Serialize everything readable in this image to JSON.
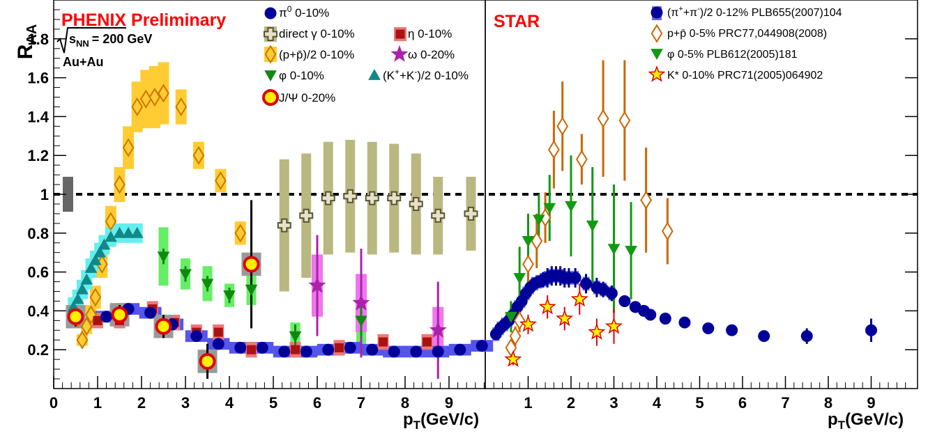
{
  "chart_data": [
    {
      "type": "scatter",
      "panel": "PHENIX",
      "title": "PHENIX Preliminary",
      "info": [
        "= 200 GeV",
        "Au+Au"
      ],
      "ylabel": "R",
      "ylabel_sub": "AA",
      "xlabel": "p",
      "xlabel_sub": "T",
      "xlabel_rest": "(GeV/c)",
      "xlim": [
        0,
        10.0
      ],
      "ylim": [
        0,
        2.0
      ],
      "xticks": [
        "0",
        "1",
        "2",
        "3",
        "4",
        "5",
        "6",
        "7",
        "8",
        "9"
      ],
      "yticks": [
        "0.2",
        "0.4",
        "0.6",
        "0.8",
        "1",
        "1.2",
        "1.4",
        "1.6",
        "1.8"
      ],
      "reference_line": 1,
      "series": [
        {
          "name": "π⁰ 0-10%",
          "marker": "circle",
          "color": "#000099",
          "x": [
            1.2,
            1.7,
            2.2,
            2.7,
            3.25,
            3.75,
            4.25,
            4.75,
            5.25,
            5.75,
            6.25,
            6.75,
            7.25,
            7.75,
            8.25,
            8.75,
            9.25,
            9.75
          ],
          "y": [
            0.37,
            0.41,
            0.39,
            0.33,
            0.27,
            0.23,
            0.21,
            0.21,
            0.19,
            0.19,
            0.2,
            0.21,
            0.2,
            0.19,
            0.19,
            0.19,
            0.2,
            0.22
          ]
        },
        {
          "name": "direct γ 0-10%",
          "marker": "cross",
          "color": "#555533",
          "x": [
            5.25,
            5.75,
            6.25,
            6.75,
            7.25,
            7.75,
            8.25,
            8.75,
            9.5
          ],
          "y": [
            0.84,
            0.89,
            0.98,
            0.99,
            0.98,
            0.98,
            0.95,
            0.89,
            0.9
          ]
        },
        {
          "name": "η 0-10%",
          "marker": "square",
          "color": "#cc2222",
          "x": [
            1.0,
            1.5,
            2.25,
            2.75,
            3.25,
            3.75,
            4.5,
            5.5,
            6.5,
            7.5,
            8.5
          ],
          "y": [
            0.35,
            0.35,
            0.41,
            0.34,
            0.29,
            0.29,
            0.2,
            0.2,
            0.21,
            0.24,
            0.24
          ]
        },
        {
          "name": "(p+p̄)/2 0-10%",
          "marker": "diamond",
          "color": "#cc7700",
          "x": [
            0.55,
            0.65,
            0.75,
            0.85,
            0.95,
            1.1,
            1.3,
            1.5,
            1.7,
            1.9,
            2.1,
            2.3,
            2.5,
            2.9,
            3.3,
            3.8,
            4.25
          ],
          "y": [
            0.36,
            0.25,
            0.32,
            0.38,
            0.47,
            0.64,
            0.86,
            1.05,
            1.24,
            1.45,
            1.49,
            1.5,
            1.52,
            1.45,
            1.2,
            1.07,
            0.8
          ]
        },
        {
          "name": "ω 0-20%",
          "marker": "star",
          "color": "#aa22aa",
          "x": [
            6.0,
            7.0,
            8.75
          ],
          "y": [
            0.53,
            0.44,
            0.3
          ]
        },
        {
          "name": "φ 0-10%",
          "marker": "triangle-down",
          "color": "#118811",
          "x": [
            2.5,
            3.0,
            3.5,
            4.0,
            4.5,
            5.5,
            7.0
          ],
          "y": [
            0.68,
            0.59,
            0.54,
            0.48,
            0.51,
            0.27,
            0.35
          ]
        },
        {
          "name": "(K⁺+K⁻)/2 0-10%",
          "marker": "triangle-up",
          "color": "#118888",
          "x": [
            0.45,
            0.55,
            0.65,
            0.75,
            0.85,
            0.95,
            1.05,
            1.15,
            1.3,
            1.5,
            1.7,
            1.9
          ],
          "y": [
            0.42,
            0.46,
            0.51,
            0.56,
            0.62,
            0.66,
            0.7,
            0.74,
            0.78,
            0.8,
            0.8,
            0.8
          ]
        },
        {
          "name": "J/Ψ 0-20%",
          "marker": "big-circle",
          "color": "#dd0000",
          "x": [
            0.5,
            1.5,
            2.5,
            3.5,
            4.5
          ],
          "y": [
            0.37,
            0.38,
            0.32,
            0.14,
            0.64
          ]
        }
      ]
    },
    {
      "type": "scatter",
      "panel": "STAR",
      "title": "STAR",
      "xlabel": "p",
      "xlabel_sub": "T",
      "xlabel_rest": "(GeV/c)",
      "xlim": [
        0,
        10.0
      ],
      "xticks": [
        "1",
        "2",
        "3",
        "4",
        "5",
        "6",
        "7",
        "8",
        "9"
      ],
      "reference_line": 1,
      "series": [
        {
          "name": "(π⁺+π⁻)/2 0-12% PLB655(2007)104",
          "marker": "circle",
          "color": "#000099",
          "x": [
            0.25,
            0.35,
            0.45,
            0.55,
            0.65,
            0.75,
            0.85,
            0.95,
            1.05,
            1.15,
            1.25,
            1.35,
            1.45,
            1.55,
            1.65,
            1.75,
            1.85,
            1.95,
            2.1,
            2.35,
            2.6,
            2.75,
            2.95,
            3.25,
            3.5,
            3.7,
            3.85,
            4.2,
            4.65,
            5.2,
            5.75,
            6.5,
            7.5,
            9.0
          ],
          "y": [
            0.28,
            0.31,
            0.33,
            0.35,
            0.38,
            0.42,
            0.45,
            0.49,
            0.52,
            0.54,
            0.55,
            0.56,
            0.57,
            0.58,
            0.58,
            0.58,
            0.57,
            0.57,
            0.57,
            0.54,
            0.52,
            0.51,
            0.49,
            0.45,
            0.42,
            0.4,
            0.38,
            0.36,
            0.34,
            0.31,
            0.3,
            0.27,
            0.27,
            0.3
          ]
        },
        {
          "name": "p+p̄ 0-5% PRC77,044908(2008)",
          "marker": "open-diamond",
          "color": "#cc6600",
          "x": [
            0.6,
            0.7,
            0.8,
            1.0,
            1.2,
            1.4,
            1.6,
            1.8,
            2.25,
            2.75,
            3.25,
            3.75,
            4.25
          ],
          "y": [
            0.21,
            0.27,
            0.35,
            0.64,
            0.76,
            0.88,
            1.23,
            1.35,
            1.18,
            1.39,
            1.38,
            0.97,
            0.81
          ]
        },
        {
          "name": "φ 0-5% PLB612(2005)181",
          "marker": "triangle-down",
          "color": "#119911",
          "x": [
            0.6,
            0.8,
            1.0,
            1.25,
            1.5,
            2.0,
            2.5,
            3.0,
            3.4
          ],
          "y": [
            0.37,
            0.57,
            0.76,
            0.87,
            0.93,
            0.94,
            0.84,
            0.72,
            0.71
          ]
        },
        {
          "name": "K* 0-10% PRC71(2005)064902",
          "marker": "star",
          "color": "#ffee00",
          "x": [
            0.65,
            1.0,
            1.45,
            1.85,
            2.2,
            2.6,
            3.0
          ],
          "y": [
            0.15,
            0.33,
            0.42,
            0.36,
            0.46,
            0.29,
            0.32
          ]
        }
      ]
    }
  ],
  "labels": {
    "phenix_title": "PHENIX Preliminary",
    "star_title": "STAR",
    "energy_label": "= 200 GeV",
    "energy_prefix": "s",
    "energy_sub": "NN",
    "species_label": "Au+Au"
  },
  "legend": {
    "phenix": [
      {
        "text": "π",
        "sup": "0",
        "rest": " 0-10%"
      },
      {
        "text": "direct γ 0-10%"
      },
      {
        "text": "η 0-10%"
      },
      {
        "text": "(p+p̄)/2 0-10%"
      },
      {
        "text": "ω 0-20%"
      },
      {
        "text": "φ 0-10%"
      },
      {
        "text": "(K",
        "sup1": "+",
        "mid": "+K",
        "sup2": "-",
        "rest": ")/2 0-10%"
      },
      {
        "text": "J/Ψ 0-20%"
      }
    ],
    "star": [
      {
        "text": "(π",
        "sup1": "+",
        "mid": "+π",
        "sup2": "-",
        "rest": ")/2 0-12% PLB655(2007)104"
      },
      {
        "text": "p+p̄ 0-5% PRC77,044908(2008)"
      },
      {
        "text": "φ 0-5% PLB612(2005)181"
      },
      {
        "text": "K* 0-10% PRC71(2005)064902"
      }
    ]
  },
  "colors": {
    "pi0": "#000099",
    "pi0_sys": "#5555ee",
    "gamma_sys": "#b8b880",
    "eta": "#cc2222",
    "proton": "#cc7700",
    "proton_sys": "#ffcc33",
    "omega": "#aa22aa",
    "omega_sys": "#ee77ee",
    "phi": "#118811",
    "phi_sys": "#66ee66",
    "kaon": "#118888",
    "kaon_sys": "#66eeee",
    "jpsi": "#dd0000",
    "jpsi_fill": "#ffee00",
    "star_proton": "#cc6600",
    "star_kstar_edge": "#dd0000",
    "star_kstar_fill": "#ffee00",
    "title_red": "#ff0000"
  }
}
